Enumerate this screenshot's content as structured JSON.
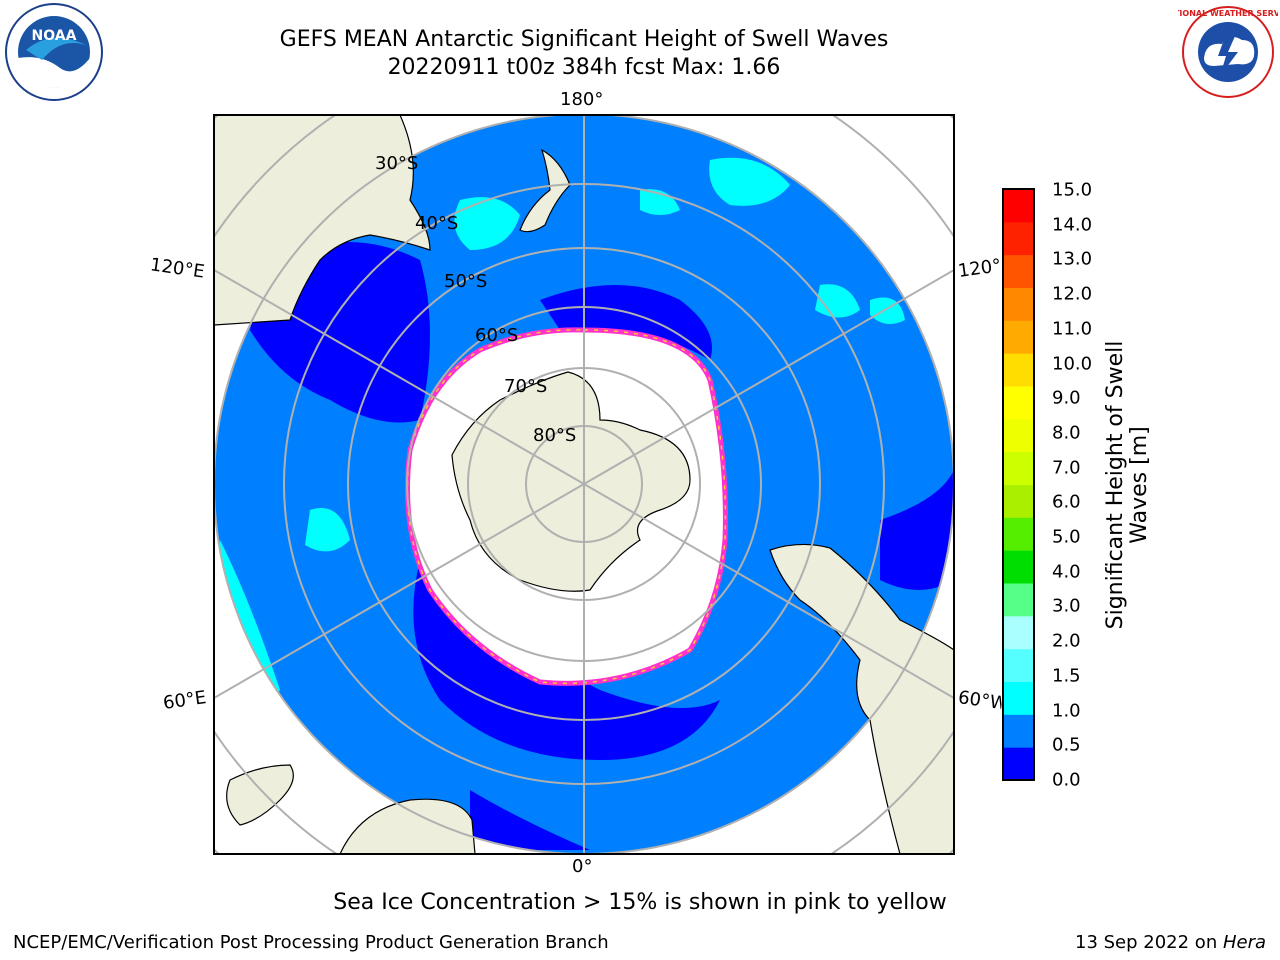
{
  "header": {
    "title_line1": "GEFS MEAN Antarctic Significant Height of Swell Waves",
    "title_line2": "20220911 t00z 384h fcst   Max: 1.66"
  },
  "logos": {
    "left": {
      "icon": "noaa-logo-icon",
      "text": "NOAA"
    },
    "right": {
      "icon": "nws-logo-icon",
      "text": "NATIONAL WEATHER SERVICE"
    }
  },
  "map": {
    "lon_labels": {
      "top": "180°",
      "bottom": "0°",
      "left_upper": "120°E",
      "left_lower": "60°E",
      "right_upper": "120°W",
      "right_lower": "60°W"
    },
    "lat_labels": [
      "30°S",
      "40°S",
      "50°S",
      "60°S",
      "70°S",
      "80°S"
    ],
    "colors": {
      "ocean_dark": "#0000ff",
      "ocean": "#0080ff",
      "land": "#eeeedc",
      "ice": "#ffffff",
      "grid": "#b0b0b0",
      "cyan": "#00ffff",
      "ice_edge": "#ff33cc",
      "ice_edge2": "#ffcc33"
    }
  },
  "colorbar": {
    "label": "Significant Height of Swell Waves [m]",
    "ticks": [
      "15.0",
      "14.0",
      "13.0",
      "12.0",
      "11.0",
      "10.0",
      "9.0",
      "8.0",
      "7.0",
      "6.0",
      "5.0",
      "4.0",
      "3.0",
      "2.0",
      "1.5",
      "1.0",
      "0.5",
      "0.0"
    ],
    "colors": [
      "#0000ff",
      "#0080ff",
      "#00ffff",
      "#55ffff",
      "#aaffff",
      "#55ff88",
      "#00dd00",
      "#55ee00",
      "#aaee00",
      "#ccff00",
      "#eeff00",
      "#ffff00",
      "#ffdd00",
      "#ffaa00",
      "#ff8800",
      "#ff5500",
      "#ff2200",
      "#ff0000"
    ]
  },
  "footer": {
    "note": "Sea Ice Concentration > 15% is shown in pink to yellow",
    "left": "NCEP/EMC/Verification Post Processing Product Generation Branch",
    "right_prefix": "13 Sep 2022 on ",
    "right_machine": "Hera"
  }
}
